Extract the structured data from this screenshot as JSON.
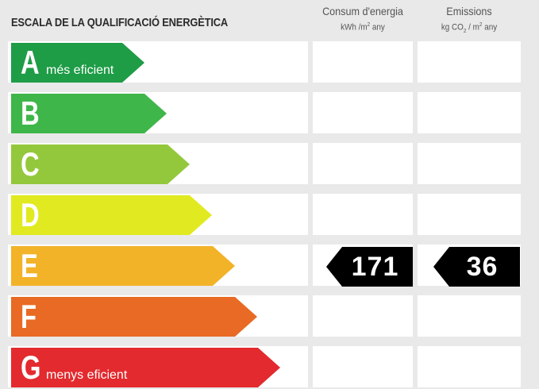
{
  "title": "ESCALA DE LA QUALIFICACIÓ ENERGÈTICA",
  "columns": {
    "consum": {
      "label": "Consum d'energia",
      "unit_prefix": "kWh /m",
      "unit_sup": "2",
      "unit_suffix": "  any"
    },
    "emissions": {
      "label": "Emissions",
      "unit_prefix": "kg CO",
      "unit_sub": "2",
      "unit_mid": "  / m",
      "unit_sup": "2",
      "unit_suffix": "  any"
    }
  },
  "scale": [
    {
      "letter": "A",
      "sublabel": "més eficient",
      "color": "#1e9c46"
    },
    {
      "letter": "B",
      "sublabel": "",
      "color": "#3fb64a"
    },
    {
      "letter": "C",
      "sublabel": "",
      "color": "#94c83c"
    },
    {
      "letter": "D",
      "sublabel": "",
      "color": "#e1ea20"
    },
    {
      "letter": "E",
      "sublabel": "",
      "color": "#f2b328"
    },
    {
      "letter": "F",
      "sublabel": "",
      "color": "#e86a24"
    },
    {
      "letter": "G",
      "sublabel": "menys eficient",
      "color": "#e32a2e"
    }
  ],
  "rating": {
    "class": "E",
    "consum_value": "171",
    "emissions_value": "36"
  }
}
